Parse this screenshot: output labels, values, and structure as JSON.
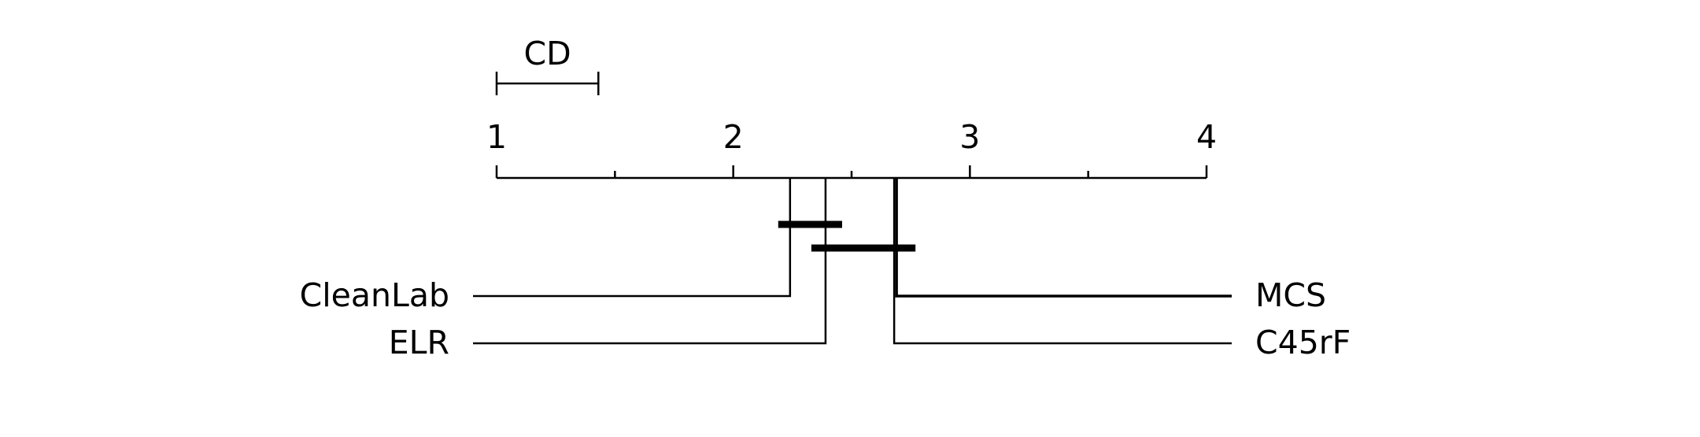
{
  "axis": {
    "min": 1,
    "max": 4,
    "major_ticks": [
      1,
      2,
      3,
      4
    ],
    "minor_ticks": [
      1.5,
      2.5,
      3.5
    ],
    "tick_labels": [
      "1",
      "2",
      "3",
      "4"
    ]
  },
  "cd": {
    "label": "CD",
    "value": 0.43
  },
  "methods": [
    {
      "name": "CleanLab",
      "rank": 2.24,
      "side": "left"
    },
    {
      "name": "ELR",
      "rank": 2.39,
      "side": "left"
    },
    {
      "name": "MCS",
      "rank": 2.69,
      "side": "right"
    },
    {
      "name": "C45rF",
      "rank": 2.68,
      "side": "right"
    }
  ],
  "cliques": [
    {
      "from": 2.19,
      "to": 2.46
    },
    {
      "from": 2.33,
      "to": 2.77
    }
  ],
  "colors": {
    "line": "#000000",
    "background": "#ffffff"
  }
}
